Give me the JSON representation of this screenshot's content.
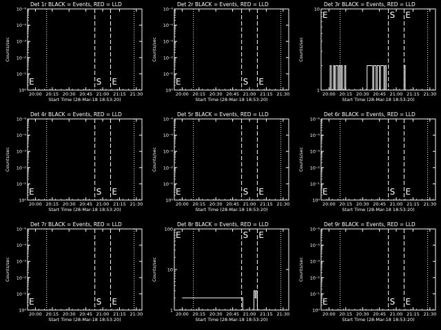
{
  "colors": {
    "background": "#000000",
    "foreground": "#ffffff"
  },
  "x_tick_labels": [
    "20:00",
    "20:15",
    "20:30",
    "20:45",
    "21:00",
    "21:15",
    "21:30"
  ],
  "x_tick_minutes": [
    1200,
    1215,
    1230,
    1245,
    1260,
    1275,
    1290
  ],
  "xlim_minutes": [
    1193,
    1295
  ],
  "xlabel": "Start Time (28-Mar-18 18:53:20)",
  "ylabel": "Counts/sec",
  "markers": {
    "start": "S",
    "end": "E"
  },
  "chart_data": [
    {
      "type": "line",
      "scale": "log",
      "title": "Det 1r BLACK = Events, RED = LLD",
      "ylim": [
        0.8,
        1e-06
      ],
      "y_ticks": [
        "10⁻⁶",
        "10⁻⁴",
        "10⁻³",
        "10⁻²",
        "10⁻¹",
        "10⁰"
      ],
      "dotted_x": [
        1193,
        1210,
        1288
      ],
      "dashed_x": [
        1253,
        1267
      ],
      "labels": [
        {
          "text": "E",
          "x": 1193
        },
        {
          "text": "S",
          "x": 1253
        },
        {
          "text": "E",
          "x": 1267
        }
      ],
      "series": []
    },
    {
      "type": "line",
      "scale": "log",
      "title": "Det 2r BLACK = Events, RED = LLD",
      "ylim": [
        0.8,
        1e-06
      ],
      "y_ticks": [
        "10⁻⁶",
        "10⁻⁴",
        "10⁻³",
        "10⁻²",
        "10⁻¹",
        "10⁰"
      ],
      "dotted_x": [
        1193,
        1210,
        1288
      ],
      "dashed_x": [
        1253,
        1267
      ],
      "labels": [
        {
          "text": "E",
          "x": 1193
        },
        {
          "text": "S",
          "x": 1253
        },
        {
          "text": "E",
          "x": 1267
        }
      ],
      "series": []
    },
    {
      "type": "line",
      "scale": "log",
      "title": "Det 3r BLACK = Events, RED = LLD",
      "ylim": [
        1,
        10
      ],
      "y_ticks": [
        "10",
        "1"
      ],
      "dotted_x": [
        1193,
        1210,
        1288
      ],
      "dashed_x": [
        1253,
        1267
      ],
      "labels": [
        {
          "text": "E",
          "x": 1193
        },
        {
          "text": "S",
          "x": 1253
        },
        {
          "text": "E",
          "x": 1267
        }
      ],
      "series": [
        {
          "x": [
            1200,
            1201,
            1202,
            1203,
            1204,
            1205,
            1206,
            1207,
            1208,
            1209,
            1210,
            1211,
            1212,
            1213,
            1214,
            1215,
            1216,
            1217,
            1218,
            1219,
            1220,
            1221,
            1222,
            1223,
            1224,
            1225,
            1226,
            1227,
            1228,
            1229,
            1230,
            1231,
            1232,
            1233,
            1234,
            1235,
            1236,
            1237,
            1238,
            1239,
            1240,
            1241,
            1242,
            1243,
            1244,
            1245,
            1246,
            1247,
            1248,
            1249,
            1250,
            1251,
            1252,
            1253,
            1254,
            1255,
            1256,
            1257,
            1258,
            1259,
            1260,
            1261,
            1262,
            1263,
            1264,
            1265,
            1266,
            1267,
            1268,
            1269,
            1270
          ],
          "y": [
            1,
            2,
            1,
            1,
            2,
            1,
            2,
            2,
            1,
            2,
            1,
            2,
            1,
            1,
            2,
            1,
            1,
            1,
            1,
            1,
            1,
            1,
            1,
            1,
            1,
            1,
            1,
            1,
            1,
            1,
            1,
            1,
            1,
            1,
            2,
            2,
            2,
            2,
            2,
            1,
            2,
            2,
            1,
            2,
            2,
            1,
            2,
            2,
            2,
            1,
            2,
            1,
            1,
            1,
            1,
            1,
            1,
            1,
            1,
            1,
            1,
            1,
            1,
            1,
            1,
            1,
            1,
            2,
            1,
            1,
            1
          ]
        }
      ]
    },
    {
      "type": "line",
      "scale": "log",
      "title": "Det 4r BLACK = Events, RED = LLD",
      "ylim": [
        0.8,
        1e-06
      ],
      "y_ticks": [
        "10⁻⁶",
        "10⁻⁴",
        "10⁻³",
        "10⁻²",
        "10⁻¹",
        "10⁰"
      ],
      "dotted_x": [
        1193,
        1210,
        1288
      ],
      "dashed_x": [
        1253,
        1267
      ],
      "labels": [
        {
          "text": "E",
          "x": 1193
        },
        {
          "text": "S",
          "x": 1253
        },
        {
          "text": "E",
          "x": 1267
        }
      ],
      "series": []
    },
    {
      "type": "line",
      "scale": "log",
      "title": "Det 5r BLACK = Events, RED = LLD",
      "ylim": [
        0.8,
        1e-06
      ],
      "y_ticks": [
        "10⁻⁶",
        "10⁻⁴",
        "10⁻³",
        "10⁻²",
        "10⁻¹",
        "10⁰"
      ],
      "dotted_x": [
        1193,
        1210,
        1288
      ],
      "dashed_x": [
        1253,
        1267
      ],
      "labels": [
        {
          "text": "E",
          "x": 1193
        },
        {
          "text": "S",
          "x": 1253
        },
        {
          "text": "E",
          "x": 1267
        }
      ],
      "series": []
    },
    {
      "type": "line",
      "scale": "log",
      "title": "Det 6r BLACK = Events, RED = LLD",
      "ylim": [
        0.8,
        1e-06
      ],
      "y_ticks": [
        "10⁻⁶",
        "10⁻⁴",
        "10⁻³",
        "10⁻²",
        "10⁻¹",
        "10⁰"
      ],
      "dotted_x": [
        1193,
        1210,
        1288
      ],
      "dashed_x": [
        1253,
        1267
      ],
      "labels": [
        {
          "text": "E",
          "x": 1193
        },
        {
          "text": "S",
          "x": 1253
        },
        {
          "text": "E",
          "x": 1267
        }
      ],
      "series": []
    },
    {
      "type": "line",
      "scale": "log",
      "title": "Det 7r BLACK = Events, RED = LLD",
      "ylim": [
        0.8,
        1e-06
      ],
      "y_ticks": [
        "10⁻⁶",
        "10⁻⁴",
        "10⁻³",
        "10⁻²",
        "10⁻¹",
        "10⁰"
      ],
      "dotted_x": [
        1193,
        1210,
        1288
      ],
      "dashed_x": [
        1253,
        1267
      ],
      "labels": [
        {
          "text": "E",
          "x": 1193
        },
        {
          "text": "S",
          "x": 1253
        },
        {
          "text": "E",
          "x": 1267
        }
      ],
      "series": []
    },
    {
      "type": "line",
      "scale": "log",
      "title": "Det 8r BLACK = Events, RED = LLD",
      "ylim": [
        1,
        100
      ],
      "y_ticks": [
        "100",
        "10",
        "1"
      ],
      "dotted_x": [
        1193,
        1210,
        1288
      ],
      "dashed_x": [
        1253,
        1267
      ],
      "labels": [
        {
          "text": "E",
          "x": 1193
        },
        {
          "text": "S",
          "x": 1253
        },
        {
          "text": "E",
          "x": 1267
        }
      ],
      "series": [
        {
          "x": [
            1200,
            1201,
            1202,
            1203,
            1204,
            1205,
            1206,
            1207,
            1208,
            1209,
            1210,
            1211,
            1212,
            1213,
            1214,
            1215,
            1216,
            1217,
            1218,
            1219,
            1220,
            1221,
            1222,
            1223,
            1224,
            1225,
            1226,
            1227,
            1228,
            1229,
            1230,
            1231,
            1232,
            1233,
            1234,
            1235,
            1236,
            1237,
            1238,
            1239,
            1240,
            1241,
            1242,
            1243,
            1244,
            1245,
            1246,
            1247,
            1248,
            1249,
            1250,
            1251,
            1252,
            1253,
            1254,
            1255,
            1256,
            1257,
            1258,
            1259,
            1260,
            1261,
            1262,
            1263,
            1264,
            1265,
            1266,
            1267,
            1268,
            1269,
            1270
          ],
          "y": [
            2,
            2,
            2,
            2,
            2,
            2,
            2,
            2,
            2,
            2,
            2,
            2,
            2,
            2,
            2,
            2,
            2,
            2,
            2,
            2,
            2,
            2,
            2,
            2,
            2,
            2,
            2,
            2,
            2,
            2,
            2,
            2,
            2,
            2,
            2,
            2,
            2,
            2,
            2,
            2,
            2,
            2,
            2,
            2,
            2,
            2,
            2,
            2,
            2,
            2,
            2,
            2,
            2,
            2,
            1,
            1,
            1,
            1,
            1,
            1,
            1,
            1,
            1,
            1,
            3,
            2,
            3,
            1,
            1,
            1,
            1
          ]
        }
      ]
    },
    {
      "type": "line",
      "scale": "log",
      "title": "Det 9r BLACK = Events, RED = LLD",
      "ylim": [
        0.8,
        1e-06
      ],
      "y_ticks": [
        "10⁻⁶",
        "10⁻⁴",
        "10⁻³",
        "10⁻²",
        "10⁻¹",
        "10⁰"
      ],
      "dotted_x": [
        1193,
        1210,
        1288
      ],
      "dashed_x": [
        1253,
        1267
      ],
      "labels": [
        {
          "text": "E",
          "x": 1193
        },
        {
          "text": "S",
          "x": 1253
        },
        {
          "text": "E",
          "x": 1267
        }
      ],
      "series": []
    }
  ]
}
